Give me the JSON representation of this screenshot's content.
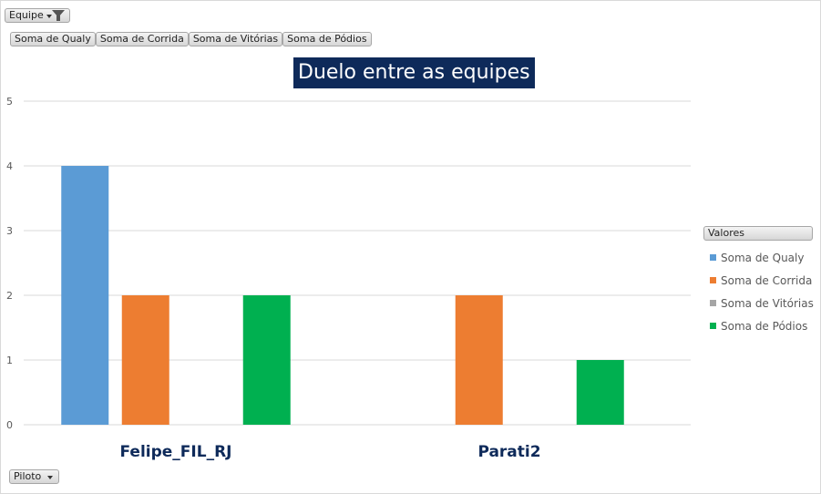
{
  "filter": {
    "label": "Equipe"
  },
  "value_fields": [
    "Soma de Qualy",
    "Soma de Corrida",
    "Soma de Vitórias",
    "Soma de Pódios"
  ],
  "axis_field": {
    "label": "Piloto"
  },
  "legend": {
    "title": "Valores"
  },
  "colors": {
    "title_bg": "#0e2a5a",
    "grid": "#d9d9d9"
  },
  "chart_data": {
    "type": "bar",
    "title": "Duelo entre as equipes",
    "categories": [
      "Felipe_FIL_RJ",
      "Parati2"
    ],
    "series": [
      {
        "name": "Soma de Qualy",
        "color": "#5b9bd5",
        "values": [
          4,
          0
        ]
      },
      {
        "name": "Soma de Corrida",
        "color": "#ed7d31",
        "values": [
          2,
          2
        ]
      },
      {
        "name": "Soma de Vitórias",
        "color": "#a5a5a5",
        "values": [
          0,
          0
        ]
      },
      {
        "name": "Soma de Pódios",
        "color": "#00b050",
        "values": [
          2,
          1
        ]
      }
    ],
    "ylim": [
      0,
      5
    ],
    "yticks": [
      0,
      1,
      2,
      3,
      4,
      5
    ],
    "grid": true,
    "legend_position": "right"
  }
}
